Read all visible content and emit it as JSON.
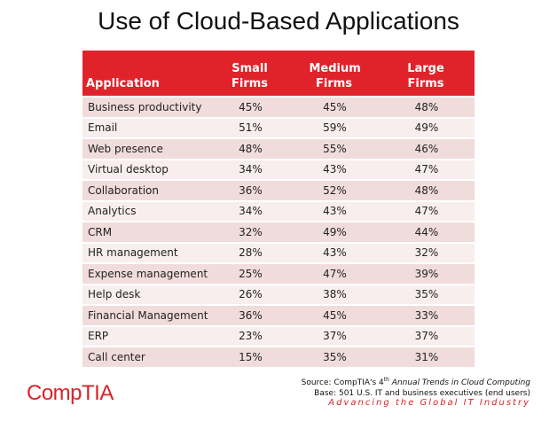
{
  "title": "Use of Cloud-Based Applications",
  "table": {
    "header": [
      "Application",
      "Small Firms",
      "Medium Firms",
      "Large Firms"
    ],
    "rows": [
      [
        "Business productivity",
        "45%",
        "45%",
        "48%"
      ],
      [
        "Email",
        "51%",
        "59%",
        "49%"
      ],
      [
        "Web presence",
        "48%",
        "55%",
        "46%"
      ],
      [
        "Virtual desktop",
        "34%",
        "43%",
        "47%"
      ],
      [
        "Collaboration",
        "36%",
        "52%",
        "48%"
      ],
      [
        "Analytics",
        "34%",
        "43%",
        "47%"
      ],
      [
        "CRM",
        "32%",
        "49%",
        "44%"
      ],
      [
        "HR management",
        "28%",
        "43%",
        "32%"
      ],
      [
        "Expense management",
        "25%",
        "47%",
        "39%"
      ],
      [
        "Help desk",
        "26%",
        "38%",
        "35%"
      ],
      [
        "Financial Management",
        "36%",
        "45%",
        "33%"
      ],
      [
        "ERP",
        "23%",
        "37%",
        "37%"
      ],
      [
        "Call center",
        "15%",
        "35%",
        "31%"
      ]
    ]
  },
  "source": {
    "prefix": "Source: CompTIA's 4",
    "superscript": "th",
    "publication": " Annual Trends in Cloud Computing",
    "base": "Base: 501 U.S. IT and business executives (end users)"
  },
  "logo": "CompTIA",
  "tagline": "Advancing the Global IT Industry"
}
